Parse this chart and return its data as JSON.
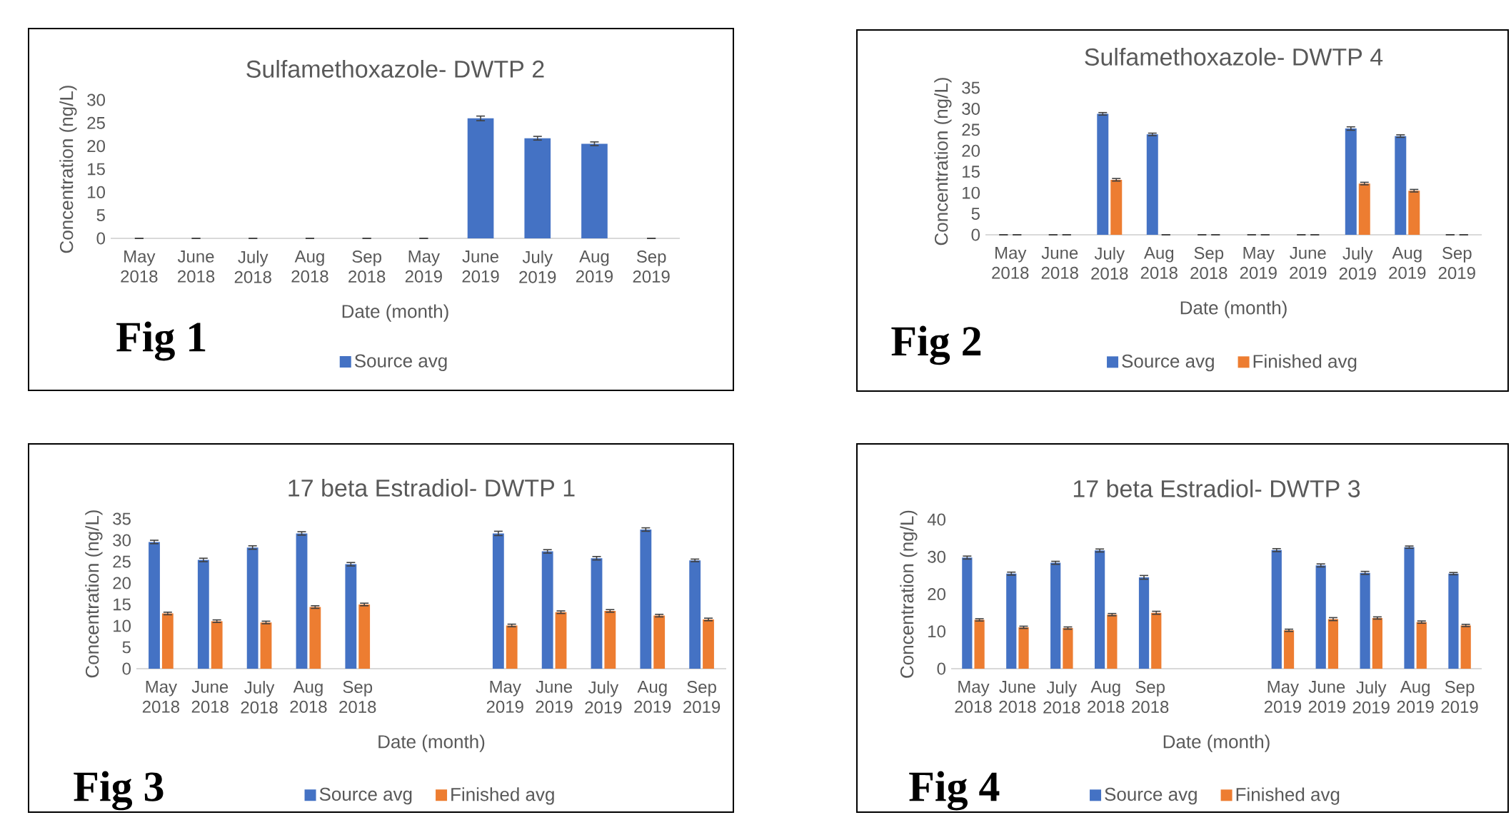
{
  "chart_data": [
    {
      "type": "bar",
      "title": "Sulfamethoxazole- DWTP 2",
      "xlabel": "Date (month)",
      "ylabel": "Concentration (ng/L)",
      "categories": [
        "May 2018",
        "June 2018",
        "July 2018",
        "Aug 2018",
        "Sep 2018",
        "May 2019",
        "June 2019",
        "July 2019",
        "Aug 2019",
        "Sep 2019"
      ],
      "series": [
        {
          "name": "Source avg",
          "color": "#4472c4",
          "values": [
            0,
            0,
            0,
            0,
            0,
            0,
            26.0,
            21.7,
            20.5,
            0
          ],
          "errors": [
            0,
            0,
            0,
            0,
            0,
            0,
            0.5,
            0.4,
            0.4,
            0
          ]
        }
      ],
      "ylim": [
        0,
        30
      ],
      "yticks": [
        0,
        5,
        10,
        15,
        20,
        25,
        30
      ],
      "legend": "bottom",
      "annotations": [
        "Fig 1"
      ]
    },
    {
      "type": "bar",
      "title": "Sulfamethoxazole- DWTP 4",
      "xlabel": "Date (month)",
      "ylabel": "Concentration (ng/L)",
      "categories": [
        "May 2018",
        "June 2018",
        "July 2018",
        "Aug 2018",
        "Sep 2018",
        "May 2019",
        "June 2019",
        "July 2019",
        "Aug 2019",
        "Sep 2019"
      ],
      "series": [
        {
          "name": "Source avg",
          "color": "#4472c4",
          "values": [
            0,
            0,
            28.8,
            23.9,
            0,
            0,
            0,
            25.3,
            23.5,
            0
          ],
          "errors": [
            0,
            0,
            0.3,
            0.3,
            0,
            0,
            0,
            0.4,
            0.3,
            0
          ]
        },
        {
          "name": "Finished avg",
          "color": "#ed7d31",
          "values": [
            0,
            0,
            13.1,
            0,
            0,
            0,
            0,
            12.2,
            10.5,
            0
          ],
          "errors": [
            0,
            0,
            0.3,
            0,
            0,
            0,
            0,
            0.3,
            0.3,
            0
          ]
        }
      ],
      "ylim": [
        0,
        35
      ],
      "yticks": [
        0,
        5,
        10,
        15,
        20,
        25,
        30,
        35
      ],
      "legend": "bottom",
      "annotations": [
        "Fig 2"
      ]
    },
    {
      "type": "bar",
      "title": "17 beta Estradiol- DWTP 1",
      "xlabel": "Date (month)",
      "ylabel": "Concentration (ng/L)",
      "categories": [
        "May 2018",
        "June 2018",
        "July 2018",
        "Aug 2018",
        "Sep 2018",
        null,
        null,
        "May 2019",
        "June 2019",
        "July 2019",
        "Aug 2019",
        "Sep 2019"
      ],
      "series": [
        {
          "name": "Source avg",
          "color": "#4472c4",
          "values": [
            29.6,
            25.4,
            28.3,
            31.6,
            24.4,
            null,
            null,
            31.6,
            27.4,
            25.8,
            32.5,
            25.3
          ],
          "errors": [
            0.4,
            0.4,
            0.4,
            0.4,
            0.4,
            null,
            null,
            0.5,
            0.4,
            0.4,
            0.4,
            0.3
          ]
        },
        {
          "name": "Finished avg",
          "color": "#ed7d31",
          "values": [
            12.9,
            11.1,
            10.8,
            14.4,
            15.0,
            null,
            null,
            10.1,
            13.2,
            13.5,
            12.4,
            11.5
          ],
          "errors": [
            0.3,
            0.3,
            0.3,
            0.3,
            0.3,
            null,
            null,
            0.3,
            0.3,
            0.3,
            0.3,
            0.3
          ]
        }
      ],
      "ylim": [
        0,
        35
      ],
      "yticks": [
        0,
        5,
        10,
        15,
        20,
        25,
        30,
        35
      ],
      "legend": "bottom",
      "annotations": [
        "Fig 3"
      ]
    },
    {
      "type": "bar",
      "title": "17 beta Estradiol- DWTP 3",
      "xlabel": "Date (month)",
      "ylabel": "Concentration (ng/L)",
      "categories": [
        "May 2018",
        "June 2018",
        "July 2018",
        "Aug 2018",
        "Sep 2018",
        null,
        null,
        "May 2019",
        "June 2019",
        "July 2019",
        "Aug 2019",
        "Sep 2019"
      ],
      "series": [
        {
          "name": "Source avg",
          "color": "#4472c4",
          "values": [
            29.8,
            25.5,
            28.4,
            31.7,
            24.5,
            null,
            null,
            31.8,
            27.7,
            25.7,
            32.6,
            25.5
          ],
          "errors": [
            0.4,
            0.4,
            0.4,
            0.4,
            0.5,
            null,
            null,
            0.4,
            0.4,
            0.4,
            0.3,
            0.3
          ]
        },
        {
          "name": "Finished avg",
          "color": "#ed7d31",
          "values": [
            13.1,
            11.1,
            10.9,
            14.5,
            15.0,
            null,
            null,
            10.3,
            13.3,
            13.6,
            12.5,
            11.6
          ],
          "errors": [
            0.3,
            0.3,
            0.3,
            0.3,
            0.4,
            null,
            null,
            0.3,
            0.4,
            0.3,
            0.3,
            0.3
          ]
        }
      ],
      "ylim": [
        0,
        40
      ],
      "yticks": [
        0,
        10,
        20,
        30,
        40
      ],
      "legend": "bottom",
      "annotations": [
        "Fig 4"
      ]
    }
  ]
}
